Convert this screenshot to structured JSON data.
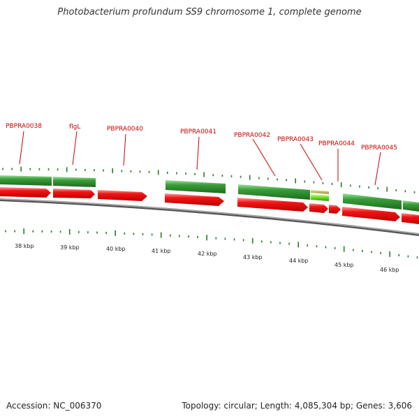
{
  "title": "Photobacterium profundum SS9 chromosome 1, complete genome",
  "footer": {
    "accession": "Accession: NC_006370",
    "summary": "Topology: circular; Length: 4,085,304 bp; Genes: 3,606"
  },
  "gene_labels": [
    "PBPRA0038",
    "flgL",
    "PBPRA0040",
    "PBPRA0041",
    "PBPRA0042",
    "PBPRA0043",
    "PBPRA0044",
    "PBPRA0045"
  ],
  "kbp_ticks": [
    "38 kbp",
    "39 kbp",
    "40 kbp",
    "41 kbp",
    "42 kbp",
    "43 kbp",
    "44 kbp",
    "45 kbp",
    "46 kbp"
  ],
  "colors": {
    "gene_label": "#cc0000",
    "green_feature": "#2f8f2f",
    "red_feature": "#ee1111",
    "yellow_feature": "#d8d080",
    "tick": "#2a7a2a",
    "backbone": "#888888"
  }
}
